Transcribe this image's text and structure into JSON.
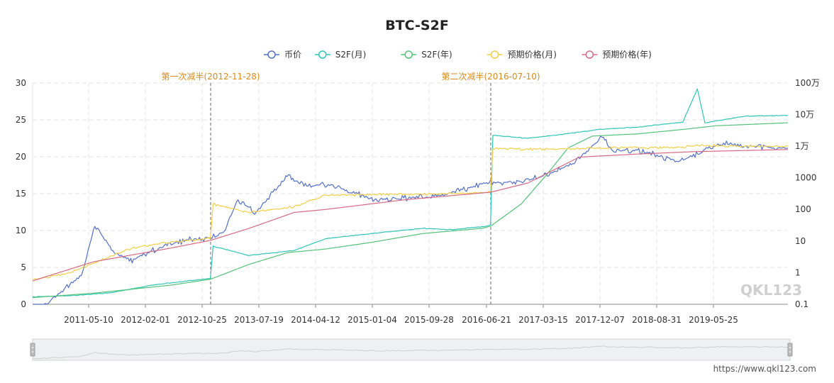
{
  "chart_data": {
    "type": "line",
    "title": "BTC-S2F",
    "legend": [
      {
        "name": "币价",
        "color": "#5470c6"
      },
      {
        "name": "S2F(月)",
        "color": "#2ec5b8"
      },
      {
        "name": "S2F(年)",
        "color": "#55c27a"
      },
      {
        "name": "预期价格(月)",
        "color": "#f2cf48"
      },
      {
        "name": "预期价格(年)",
        "color": "#d66b84"
      }
    ],
    "legend_position": "top-center",
    "x_ticks": [
      "2011-05-10",
      "2012-02-01",
      "2012-10-25",
      "2013-07-19",
      "2014-04-12",
      "2015-01-04",
      "2015-09-28",
      "2016-06-21",
      "2017-03-15",
      "2017-12-07",
      "2018-08-31",
      "2019-05-25"
    ],
    "y_left": {
      "min": 0,
      "max": 30,
      "ticks": [
        "0",
        "5",
        "10",
        "15",
        "20",
        "25",
        "30"
      ],
      "meaning": "S2F"
    },
    "y_right": {
      "scale": "log",
      "ticks": [
        "0.1",
        "1",
        "10",
        "100",
        "1000",
        "1万",
        "10万",
        "100万"
      ],
      "meaning": "price"
    },
    "grid": true,
    "annotations": [
      {
        "label": "第一次减半(2012-11-28)",
        "date": "2012-11-28"
      },
      {
        "label": "第二次减半(2016-07-10)",
        "date": "2016-07-10"
      }
    ],
    "series_anchor_x": [
      "2010-07-18",
      "2011-05-10",
      "2012-02-01",
      "2012-10-25",
      "2012-11-28",
      "2013-07-19",
      "2014-04-12",
      "2015-01-04",
      "2015-09-28",
      "2016-06-21",
      "2016-07-10",
      "2017-03-15",
      "2017-12-07",
      "2018-08-31",
      "2019-05-25",
      "2020-01-15"
    ],
    "series": [
      {
        "name": "币价",
        "unit": "USD",
        "log": true,
        "x": [
          "2010-07-18",
          "2010-10-01",
          "2011-01-01",
          "2011-04-01",
          "2011-06-08",
          "2011-09-01",
          "2011-11-18",
          "2012-03-01",
          "2012-08-15",
          "2012-11-28",
          "2013-02-01",
          "2013-04-10",
          "2013-07-05",
          "2013-11-30",
          "2014-03-01",
          "2014-07-01",
          "2015-01-14",
          "2015-06-01",
          "2015-10-01",
          "2016-03-01",
          "2016-06-21",
          "2016-12-01",
          "2017-03-15",
          "2017-08-01",
          "2017-12-17",
          "2018-02-06",
          "2018-06-01",
          "2018-12-15",
          "2019-06-26",
          "2019-09-01",
          "2020-01-15"
        ],
        "values": [
          0.07,
          0.1,
          0.3,
          0.8,
          29,
          5,
          2.3,
          5,
          11,
          12.5,
          20,
          200,
          80,
          1100,
          550,
          600,
          200,
          230,
          240,
          420,
          700,
          750,
          1150,
          2800,
          19000,
          7000,
          7500,
          3300,
          12500,
          10000,
          8700
        ]
      },
      {
        "name": "S2F(月)",
        "log": false,
        "x": [
          "2010-07-18",
          "2011-03-01",
          "2011-09-01",
          "2012-03-01",
          "2012-08-01",
          "2012-11-27",
          "2012-12-10",
          "2013-06-01",
          "2014-01-01",
          "2014-06-01",
          "2015-01-01",
          "2015-09-01",
          "2016-01-15",
          "2016-06-21",
          "2016-07-09",
          "2016-07-20",
          "2017-01-01",
          "2017-06-01",
          "2017-12-01",
          "2018-06-01",
          "2019-01-01",
          "2019-03-10",
          "2019-04-15",
          "2019-09-01",
          "2020-01-15"
        ],
        "values": [
          1.0,
          1.2,
          1.6,
          2.6,
          3.1,
          3.5,
          7.9,
          6.6,
          7.3,
          8.9,
          9.6,
          10.3,
          10.1,
          10.6,
          10.8,
          22.9,
          22.5,
          23.0,
          23.7,
          24.0,
          24.7,
          29.2,
          24.6,
          25.5,
          25.6
        ]
      },
      {
        "name": "S2F(年)",
        "log": false,
        "x": [
          "2010-07-18",
          "2011-06-01",
          "2012-06-01",
          "2012-11-28",
          "2013-06-01",
          "2013-12-01",
          "2014-06-01",
          "2015-01-01",
          "2015-09-01",
          "2016-06-01",
          "2016-07-10",
          "2016-12-01",
          "2017-04-01",
          "2017-07-10",
          "2017-11-01",
          "2018-06-01",
          "2019-01-01",
          "2019-06-01",
          "2020-01-15"
        ],
        "values": [
          0.9,
          1.5,
          2.6,
          3.4,
          5.4,
          7.0,
          7.5,
          8.4,
          9.6,
          10.3,
          10.6,
          13.6,
          17.6,
          21.2,
          22.8,
          23.1,
          23.7,
          24.2,
          24.6
        ]
      },
      {
        "name": "预期价格(月)",
        "unit": "USD",
        "log": true,
        "x": [
          "2010-07-18",
          "2011-02-01",
          "2011-07-01",
          "2011-12-01",
          "2012-05-01",
          "2012-11-27",
          "2012-12-10",
          "2013-06-01",
          "2014-01-01",
          "2014-06-01",
          "2015-03-01",
          "2015-09-01",
          "2016-06-21",
          "2016-07-09",
          "2016-07-20",
          "2017-01-01",
          "2017-08-01",
          "2018-03-01",
          "2019-01-01",
          "2019-03-15",
          "2019-09-01",
          "2020-01-15"
        ],
        "values": [
          0.6,
          1.0,
          2.4,
          6.0,
          9.0,
          12,
          150,
          80,
          120,
          280,
          300,
          300,
          340,
          360,
          8500,
          8000,
          8300,
          8800,
          9300,
          10500,
          10000,
          9700
        ]
      },
      {
        "name": "预期价格(年)",
        "unit": "USD",
        "log": true,
        "x": [
          "2010-07-18",
          "2011-06-01",
          "2012-06-01",
          "2012-11-28",
          "2013-06-01",
          "2014-01-01",
          "2014-06-01",
          "2015-06-01",
          "2016-07-10",
          "2017-01-01",
          "2017-09-01",
          "2018-06-01",
          "2019-03-01",
          "2020-01-15"
        ],
        "values": [
          0.55,
          2.2,
          6.0,
          10.5,
          25,
          80,
          100,
          200,
          350,
          680,
          4500,
          5600,
          6700,
          7800
        ]
      }
    ]
  },
  "watermark": "QKL123",
  "source_url": "https://www.qkl123.com"
}
